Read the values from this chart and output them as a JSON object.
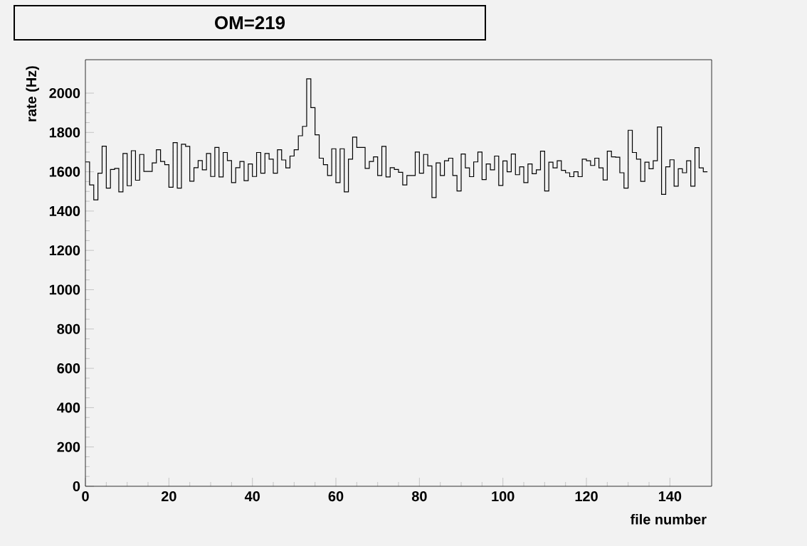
{
  "chart_data": {
    "type": "histogram",
    "title": "OM=219",
    "xlabel": "file number",
    "ylabel": "rate (Hz)",
    "bins": [
      0,
      1,
      2,
      3,
      4,
      5,
      6,
      7,
      8,
      9,
      10,
      11,
      12,
      13,
      14,
      15,
      16,
      17,
      18,
      19,
      20,
      21,
      22,
      23,
      24,
      25,
      26,
      27,
      28,
      29,
      30,
      31,
      32,
      33,
      34,
      35,
      36,
      37,
      38,
      39,
      40,
      41,
      42,
      43,
      44,
      45,
      46,
      47,
      48,
      49,
      50,
      51,
      52,
      53,
      54,
      55,
      56,
      57,
      58,
      59,
      60,
      61,
      62,
      63,
      64,
      65,
      66,
      67,
      68,
      69,
      70,
      71,
      72,
      73,
      74,
      75,
      76,
      77,
      78,
      79,
      80,
      81,
      82,
      83,
      84,
      85,
      86,
      87,
      88,
      89,
      90,
      91,
      92,
      93,
      94,
      95,
      96,
      97,
      98,
      99,
      100,
      101,
      102,
      103,
      104,
      105,
      106,
      107,
      108,
      109,
      110,
      111,
      112,
      113,
      114,
      115,
      116,
      117,
      118,
      119,
      120,
      121,
      122,
      123,
      124,
      125,
      126,
      127,
      128,
      129,
      130,
      131,
      132,
      133,
      134,
      135,
      136,
      137,
      138,
      139,
      140,
      141,
      142,
      143,
      144,
      145,
      146,
      147,
      148,
      149
    ],
    "values": [
      1650,
      1533,
      1457,
      1593,
      1730,
      1517,
      1612,
      1617,
      1498,
      1693,
      1529,
      1707,
      1557,
      1688,
      1602,
      1602,
      1645,
      1712,
      1652,
      1636,
      1521,
      1748,
      1517,
      1740,
      1729,
      1552,
      1621,
      1657,
      1610,
      1693,
      1576,
      1724,
      1574,
      1698,
      1657,
      1545,
      1621,
      1652,
      1555,
      1640,
      1576,
      1698,
      1593,
      1693,
      1664,
      1593,
      1712,
      1660,
      1620,
      1680,
      1712,
      1783,
      1831,
      2073,
      1926,
      1788,
      1669,
      1636,
      1581,
      1717,
      1545,
      1717,
      1498,
      1664,
      1776,
      1724,
      1724,
      1617,
      1652,
      1676,
      1581,
      1729,
      1574,
      1621,
      1612,
      1597,
      1533,
      1581,
      1581,
      1700,
      1593,
      1688,
      1630,
      1469,
      1645,
      1581,
      1656,
      1669,
      1581,
      1502,
      1690,
      1620,
      1575,
      1650,
      1700,
      1560,
      1640,
      1610,
      1680,
      1530,
      1655,
      1600,
      1690,
      1585,
      1625,
      1545,
      1640,
      1590,
      1610,
      1705,
      1502,
      1649,
      1620,
      1656,
      1607,
      1595,
      1575,
      1600,
      1575,
      1664,
      1656,
      1632,
      1669,
      1620,
      1558,
      1705,
      1676,
      1674,
      1595,
      1517,
      1811,
      1698,
      1664,
      1551,
      1649,
      1615,
      1656,
      1828,
      1485,
      1625,
      1661,
      1527,
      1615,
      1595,
      1656,
      1527,
      1723,
      1620,
      1600
    ],
    "color": "#000000",
    "xlim": [
      0,
      150
    ],
    "ylim": [
      0,
      2170
    ],
    "xticks": [
      0,
      20,
      40,
      60,
      80,
      100,
      120,
      140
    ],
    "yticks": [
      0,
      200,
      400,
      600,
      800,
      1000,
      1200,
      1400,
      1600,
      1800,
      2000
    ]
  }
}
